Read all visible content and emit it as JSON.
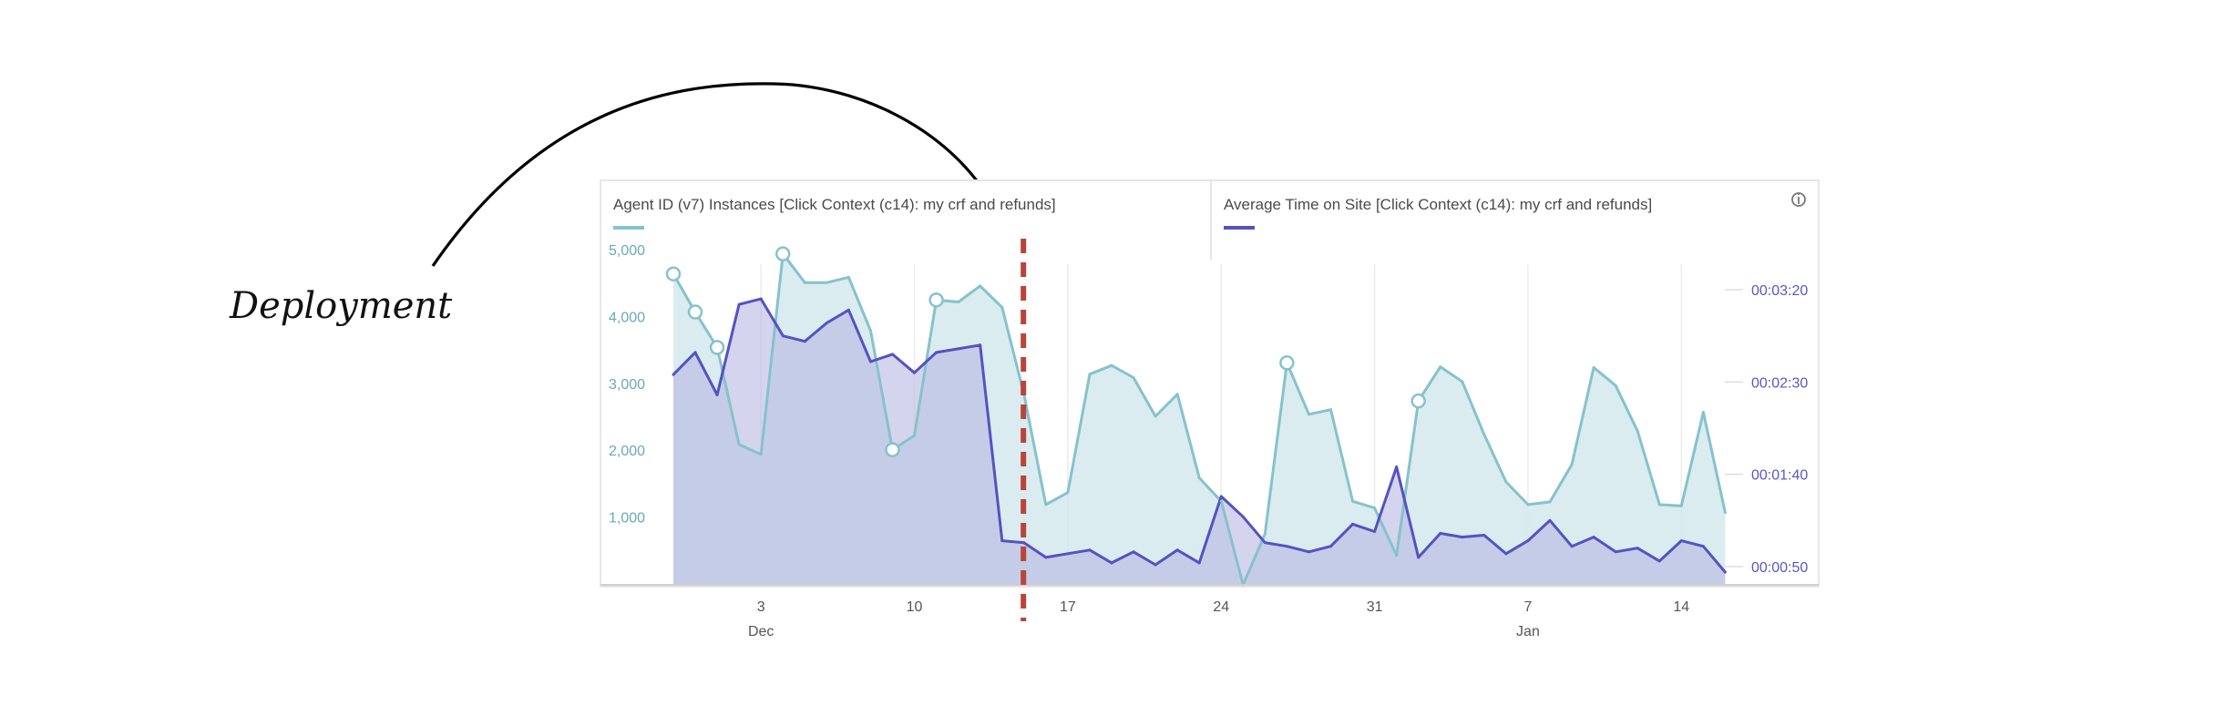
{
  "annotation": {
    "label": "Deployment"
  },
  "chart_data": {
    "type": "area",
    "metrics": [
      {
        "name": "Agent ID (v7) Instances [Click Context (c14): my crf and refunds]",
        "color": "#86c2cc",
        "fill": "#d3e9ec",
        "axis": "left"
      },
      {
        "name": "Average Time on Site [Click Context (c14): my crf and refunds]",
        "color": "#5552c0",
        "fill": "#b8b8e2",
        "axis": "right"
      }
    ],
    "info_icon": "info-icon",
    "left_axis": {
      "ticks": [
        "5,000",
        "4,000",
        "3,000",
        "2,000",
        "1,000"
      ],
      "values": [
        5000,
        4000,
        3000,
        2000,
        1000
      ],
      "ylim": [
        0,
        5000
      ]
    },
    "right_axis": {
      "ticks": [
        "00:03:20",
        "00:02:30",
        "00:01:40",
        "00:00:50"
      ],
      "seconds": [
        200,
        150,
        100,
        50
      ],
      "ylim": [
        40,
        205
      ]
    },
    "x_ticks": [
      {
        "date": "Dec 3",
        "label": "3"
      },
      {
        "date": "Dec 10",
        "label": "10"
      },
      {
        "date": "Dec 17",
        "label": "17"
      },
      {
        "date": "Dec 24",
        "label": "24"
      },
      {
        "date": "Dec 31",
        "label": "31"
      },
      {
        "date": "Jan 7",
        "label": "7"
      },
      {
        "date": "Jan 14",
        "label": "14"
      }
    ],
    "x_month_labels": [
      {
        "date": "Dec 3",
        "label": "Dec"
      },
      {
        "date": "Jan 7",
        "label": "Jan"
      }
    ],
    "x": [
      "Nov 29",
      "Nov 30",
      "Dec 1",
      "Dec 2",
      "Dec 3",
      "Dec 4",
      "Dec 5",
      "Dec 6",
      "Dec 7",
      "Dec 8",
      "Dec 9",
      "Dec 10",
      "Dec 11",
      "Dec 12",
      "Dec 13",
      "Dec 14",
      "Dec 15",
      "Dec 16",
      "Dec 17",
      "Dec 18",
      "Dec 19",
      "Dec 20",
      "Dec 21",
      "Dec 22",
      "Dec 23",
      "Dec 24",
      "Dec 25",
      "Dec 26",
      "Dec 27",
      "Dec 28",
      "Dec 29",
      "Dec 30",
      "Dec 31",
      "Jan 1",
      "Jan 2",
      "Jan 3",
      "Jan 4",
      "Jan 5",
      "Jan 6",
      "Jan 7",
      "Jan 8",
      "Jan 9",
      "Jan 10",
      "Jan 11",
      "Jan 12",
      "Jan 13",
      "Jan 14",
      "Jan 15",
      "Jan 16"
    ],
    "series": [
      {
        "name": "Agent ID (v7) Instances",
        "values": [
          4650,
          4080,
          3550,
          2100,
          1950,
          4950,
          4520,
          4520,
          4600,
          3800,
          2020,
          2230,
          4260,
          4230,
          4470,
          4150,
          2850,
          1200,
          1380,
          3150,
          3280,
          3100,
          2520,
          2850,
          1600,
          1250,
          0,
          760,
          3320,
          2550,
          2620,
          1250,
          1150,
          440,
          2750,
          3260,
          3040,
          2250,
          1540,
          1200,
          1240,
          1800,
          3250,
          2980,
          2300,
          1200,
          1180,
          2580,
          1080
        ],
        "markers": [
          0,
          1,
          2,
          5,
          10,
          12,
          28,
          34
        ]
      },
      {
        "name": "Average Time on Site",
        "values_seconds": [
          154,
          166,
          143,
          192,
          195,
          175,
          172,
          182,
          189,
          161,
          165,
          155,
          166,
          168,
          170,
          64,
          63,
          55,
          57,
          59,
          52,
          58,
          51,
          59,
          52,
          88,
          77,
          63,
          61,
          58,
          61,
          73,
          69,
          104,
          55,
          68,
          66,
          67,
          57,
          64,
          75,
          61,
          66,
          58,
          60,
          53,
          64,
          61,
          47
        ]
      }
    ],
    "event_marker": {
      "label": "Deployment",
      "date": "Dec 15"
    },
    "grid": true,
    "legend": "top"
  }
}
